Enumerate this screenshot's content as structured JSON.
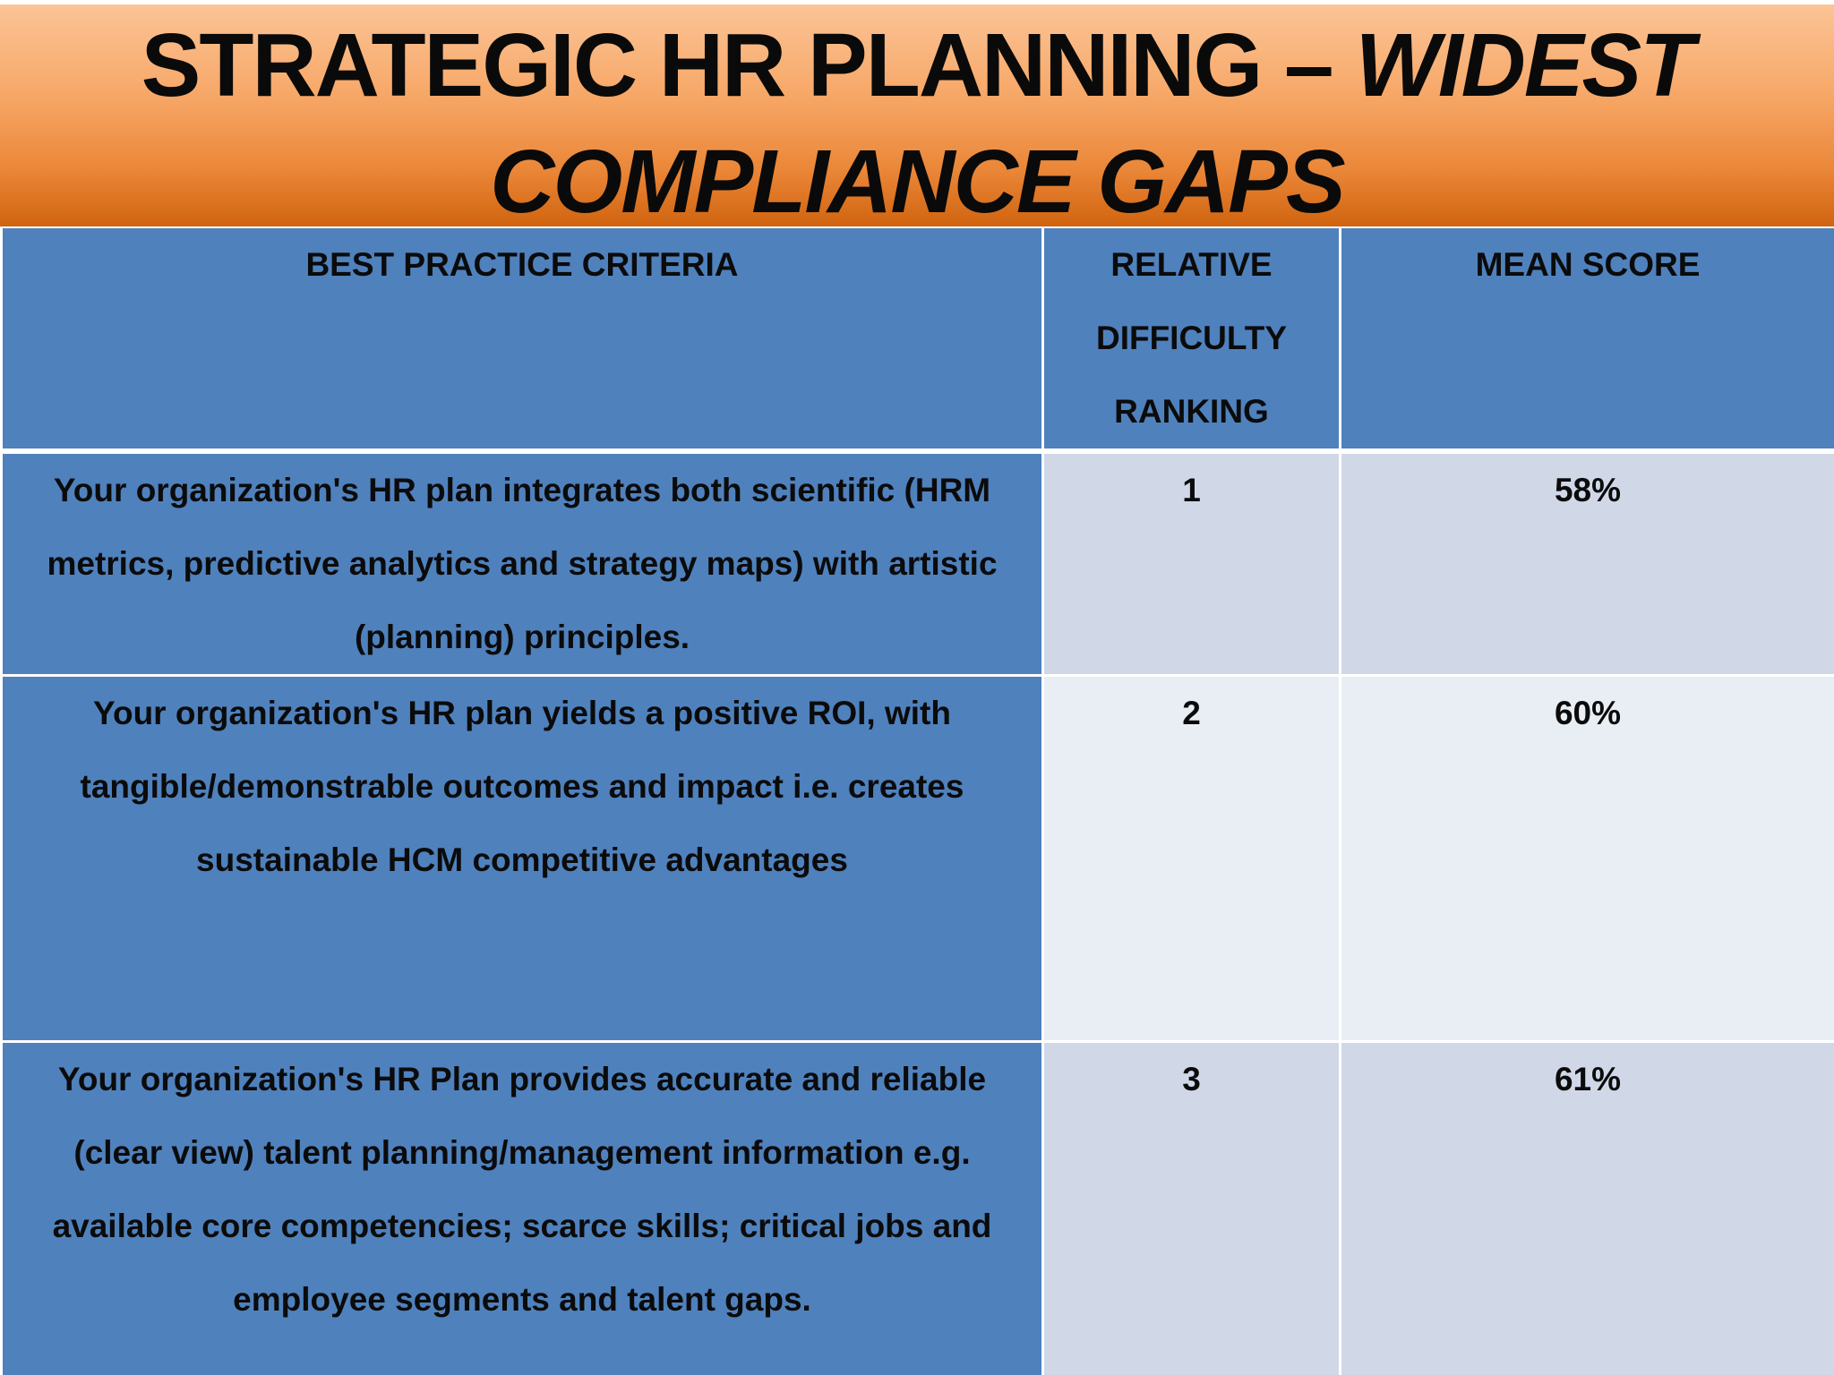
{
  "slide": {
    "title_line1_plain": "STRATEGIC HR PLANNING – ",
    "title_line1_italic": "WIDEST",
    "title_line2_italic": "COMPLIANCE GAPS"
  },
  "table": {
    "headers": {
      "criteria": "BEST PRACTICE CRITERIA",
      "ranking_line1": "RELATIVE",
      "ranking_line2": "DIFFICULTY",
      "ranking_line3": "RANKING",
      "score": "MEAN SCORE"
    },
    "rows": [
      {
        "criteria": "Your organization's HR plan integrates both scientific (HRM metrics, predictive analytics and strategy maps) with artistic (planning) principles.",
        "ranking": "1",
        "score": "58%"
      },
      {
        "criteria": "Your organization's HR plan yields a positive ROI, with tangible/demonstrable outcomes and impact i.e. creates sustainable HCM competitive advantages",
        "ranking": "2",
        "score": "60%"
      },
      {
        "criteria": "Your organization's HR Plan provides accurate and reliable (clear view) talent planning/management information e.g. available core competencies; scarce skills; critical jobs and employee segments and talent gaps.",
        "ranking": "3",
        "score": "61%"
      }
    ]
  },
  "colors": {
    "title_gradient_top": "#fbc497",
    "title_gradient_bottom": "#d0640f",
    "header_blue": "#4f81bd",
    "band_light": "#d0d8e8",
    "band_lighter": "#e9edf4"
  }
}
